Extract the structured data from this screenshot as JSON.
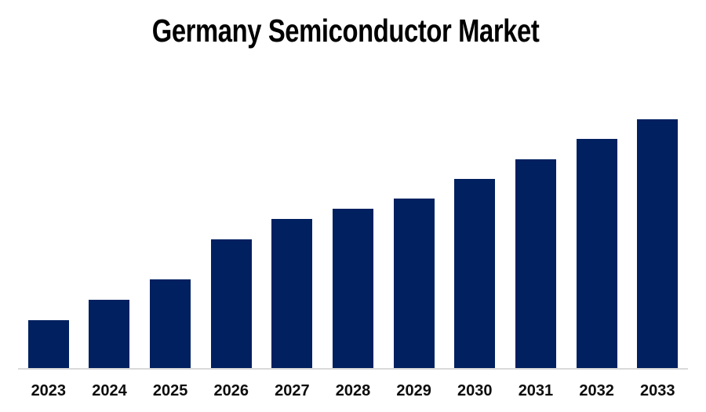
{
  "title": "Germany Semiconductor Market",
  "chart_data": {
    "type": "bar",
    "title": "Germany Semiconductor Market",
    "categories": [
      "2023",
      "2024",
      "2025",
      "2026",
      "2027",
      "2028",
      "2029",
      "2030",
      "2031",
      "2032",
      "2033"
    ],
    "values": [
      19.4,
      27.6,
      35.7,
      51.7,
      59.9,
      64.0,
      68.0,
      75.9,
      84.0,
      92.2,
      100.0
    ],
    "value_scale": "percent of tallest bar (no numeric y-axis shown in chart)",
    "xlabel": "",
    "ylabel": "",
    "ylim": [
      0,
      100
    ],
    "grid": false,
    "legend": "none",
    "bar_color": "#002060",
    "baseline_color": "#d9d9d9",
    "title_color": "#000000",
    "label_color": "#0d0d0d"
  }
}
